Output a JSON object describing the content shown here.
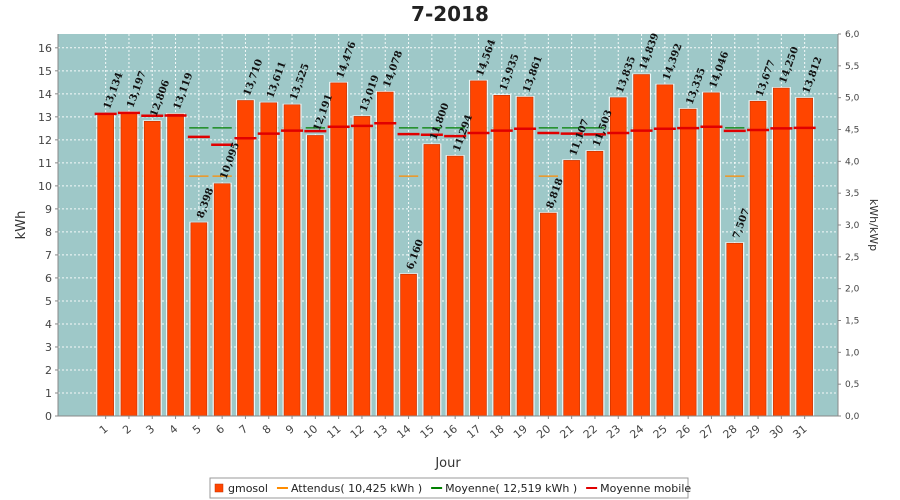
{
  "chart_data": {
    "type": "bar",
    "title": "7-2018",
    "xlabel": "Jour",
    "ylabel": "kWh",
    "y2label": "kWh/kWp",
    "ylim": [
      0,
      16.6
    ],
    "y2lim": [
      0,
      6.0
    ],
    "yticks": [
      "0",
      "1",
      "2",
      "3",
      "4",
      "5",
      "6",
      "7",
      "8",
      "9",
      "10",
      "11",
      "12",
      "13",
      "14",
      "15",
      "16"
    ],
    "y2ticks": [
      "0,0",
      "0,5",
      "1,0",
      "1,5",
      "2,0",
      "2,5",
      "3,0",
      "3,5",
      "4,0",
      "4,5",
      "5,0",
      "5,5",
      "6,0"
    ],
    "grid": true,
    "legend_position": "bottom",
    "categories": [
      "1",
      "2",
      "3",
      "4",
      "5",
      "6",
      "7",
      "8",
      "9",
      "10",
      "11",
      "12",
      "13",
      "14",
      "15",
      "16",
      "17",
      "18",
      "19",
      "20",
      "21",
      "22",
      "23",
      "24",
      "25",
      "26",
      "27",
      "28",
      "29",
      "30",
      "31"
    ],
    "series": [
      {
        "name": "gmosol",
        "kind": "bar",
        "color": "#ff4500",
        "values": [
          13.134,
          13.197,
          12.806,
          13.119,
          8.398,
          10.095,
          13.71,
          13.611,
          13.525,
          12.191,
          14.476,
          13.019,
          14.078,
          6.16,
          11.8,
          11.294,
          14.564,
          13.935,
          13.861,
          8.818,
          11.107,
          11.503,
          13.835,
          14.839,
          14.392,
          13.335,
          14.046,
          7.507,
          13.677,
          14.25,
          13.812
        ],
        "labels": [
          "13,134",
          "13,197",
          "12,806",
          "13,119",
          "8,398",
          "10,095",
          "13,710",
          "13,611",
          "13,525",
          "12,191",
          "14,476",
          "13,019",
          "14,078",
          "6,160",
          "11,800",
          "11,294",
          "14,564",
          "13,935",
          "13,861",
          "8,818",
          "11,107",
          "11,503",
          "13,835",
          "14,839",
          "14,392",
          "13,335",
          "14,046",
          "7,507",
          "13,677",
          "14,250",
          "13,812"
        ]
      },
      {
        "name": "Attendus( 10,425 kWh )",
        "kind": "line",
        "color": "#ff8c00",
        "values": [
          10.425,
          10.425,
          10.425,
          10.425,
          10.425,
          10.425,
          10.425,
          10.425,
          10.425,
          10.425,
          10.425,
          10.425,
          10.425,
          10.425,
          10.425,
          10.425,
          10.425,
          10.425,
          10.425,
          10.425,
          10.425,
          10.425,
          10.425,
          10.425,
          10.425,
          10.425,
          10.425,
          10.425,
          10.425,
          10.425,
          10.425
        ]
      },
      {
        "name": "Moyenne( 12,519 kWh )",
        "kind": "line",
        "color": "#008000",
        "values": [
          12.519,
          12.519,
          12.519,
          12.519,
          12.519,
          12.519,
          12.519,
          12.519,
          12.519,
          12.519,
          12.519,
          12.519,
          12.519,
          12.519,
          12.519,
          12.519,
          12.519,
          12.519,
          12.519,
          12.519,
          12.519,
          12.519,
          12.519,
          12.519,
          12.519,
          12.519,
          12.519,
          12.519,
          12.519,
          12.519,
          12.519
        ]
      },
      {
        "name": "Moyenne mobile",
        "kind": "marker",
        "color": "#e00000",
        "values": [
          13.13,
          13.17,
          13.05,
          13.06,
          12.13,
          11.79,
          12.07,
          12.27,
          12.4,
          12.38,
          12.57,
          12.61,
          12.72,
          12.25,
          12.22,
          12.16,
          12.3,
          12.4,
          12.48,
          12.3,
          12.27,
          12.24,
          12.3,
          12.4,
          12.48,
          12.51,
          12.57,
          12.39,
          12.43,
          12.5,
          12.52
        ]
      }
    ]
  }
}
